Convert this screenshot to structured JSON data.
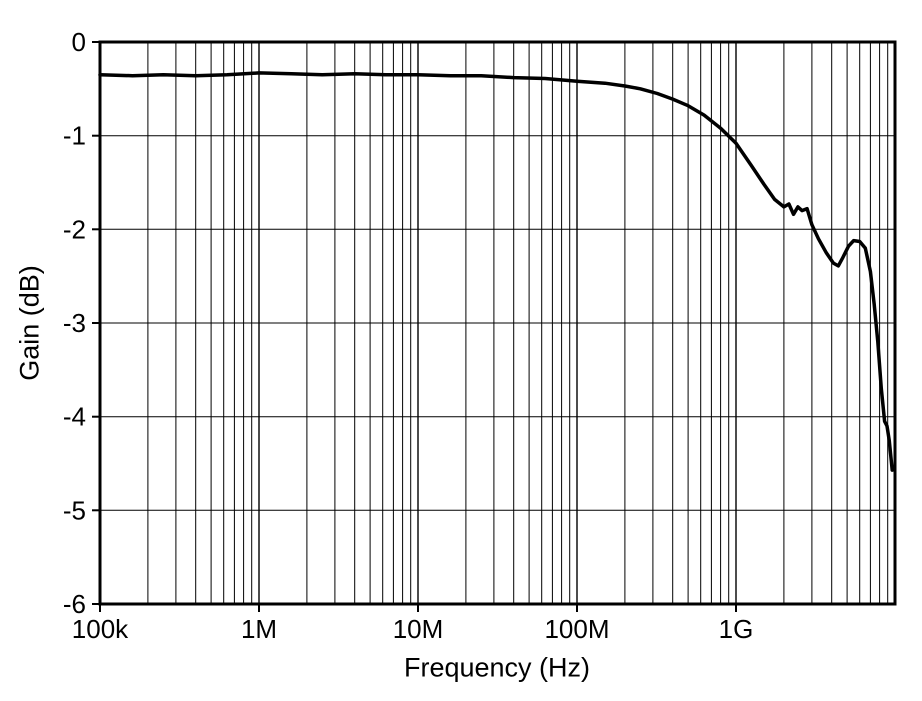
{
  "chart_data": {
    "type": "line",
    "title": "",
    "xlabel": "Frequency (Hz)",
    "ylabel": "Gain (dB)",
    "x_scale": "log",
    "xlim": [
      100000.0,
      10000000000.0
    ],
    "ylim": [
      -6,
      0
    ],
    "grid": "horizontal major lines every 1 dB; vertical log-decade lines with minor divisions 2-9 per decade",
    "legend": "none",
    "line_color": "#000000",
    "x_ticks": [
      {
        "value": 100000.0,
        "label": "100k"
      },
      {
        "value": 1000000.0,
        "label": "1M"
      },
      {
        "value": 10000000.0,
        "label": "10M"
      },
      {
        "value": 100000000.0,
        "label": "100M"
      },
      {
        "value": 1000000000.0,
        "label": "1G"
      }
    ],
    "y_ticks": [
      0,
      -1,
      -2,
      -3,
      -4,
      -5,
      -6
    ],
    "series": [
      {
        "name": "Gain",
        "color": "#000000",
        "points": [
          [
            100000.0,
            -0.35
          ],
          [
            160000.0,
            -0.36
          ],
          [
            250000.0,
            -0.35
          ],
          [
            400000.0,
            -0.36
          ],
          [
            630000.0,
            -0.35
          ],
          [
            1000000.0,
            -0.33
          ],
          [
            1600000.0,
            -0.34
          ],
          [
            2500000.0,
            -0.35
          ],
          [
            4000000.0,
            -0.34
          ],
          [
            6300000.0,
            -0.35
          ],
          [
            10000000.0,
            -0.35
          ],
          [
            16000000.0,
            -0.36
          ],
          [
            25000000.0,
            -0.36
          ],
          [
            40000000.0,
            -0.38
          ],
          [
            63000000.0,
            -0.39
          ],
          [
            100000000.0,
            -0.42
          ],
          [
            150000000.0,
            -0.44
          ],
          [
            200000000.0,
            -0.47
          ],
          [
            250000000.0,
            -0.5
          ],
          [
            320000000.0,
            -0.55
          ],
          [
            400000000.0,
            -0.61
          ],
          [
            500000000.0,
            -0.68
          ],
          [
            630000000.0,
            -0.78
          ],
          [
            800000000.0,
            -0.92
          ],
          [
            1000000000.0,
            -1.08
          ],
          [
            1250000000.0,
            -1.32
          ],
          [
            1500000000.0,
            -1.52
          ],
          [
            1750000000.0,
            -1.68
          ],
          [
            2000000000.0,
            -1.76
          ],
          [
            2150000000.0,
            -1.73
          ],
          [
            2300000000.0,
            -1.84
          ],
          [
            2450000000.0,
            -1.76
          ],
          [
            2600000000.0,
            -1.8
          ],
          [
            2800000000.0,
            -1.78
          ],
          [
            3000000000.0,
            -1.95
          ],
          [
            3300000000.0,
            -2.1
          ],
          [
            3700000000.0,
            -2.25
          ],
          [
            4100000000.0,
            -2.36
          ],
          [
            4400000000.0,
            -2.39
          ],
          [
            4700000000.0,
            -2.3
          ],
          [
            5100000000.0,
            -2.18
          ],
          [
            5500000000.0,
            -2.12
          ],
          [
            6000000000.0,
            -2.13
          ],
          [
            6500000000.0,
            -2.2
          ],
          [
            7000000000.0,
            -2.45
          ],
          [
            7400000000.0,
            -2.8
          ],
          [
            7800000000.0,
            -3.2
          ],
          [
            8200000000.0,
            -3.7
          ],
          [
            8600000000.0,
            -4.05
          ],
          [
            8900000000.0,
            -4.1
          ],
          [
            9200000000.0,
            -4.25
          ],
          [
            9600000000.0,
            -4.57
          ]
        ]
      }
    ]
  }
}
